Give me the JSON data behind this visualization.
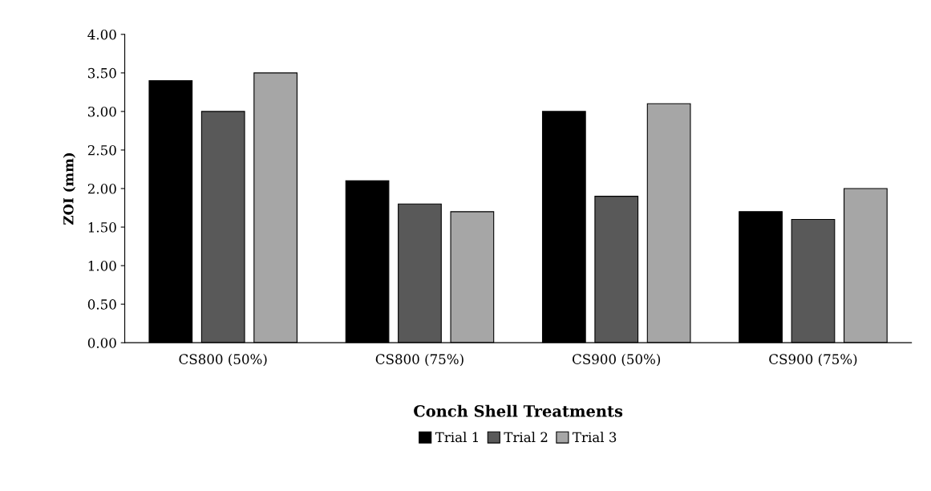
{
  "chart_data": {
    "type": "bar",
    "xlabel": "Conch Shell Treatments",
    "ylabel": "ZOI (mm)",
    "categories": [
      "CS800 (50%)",
      "CS800 (75%)",
      "CS900 (50%)",
      "CS900 (75%)"
    ],
    "series": [
      {
        "name": "Trial 1",
        "color": "#000000",
        "values": [
          3.4,
          2.1,
          3.0,
          1.7
        ]
      },
      {
        "name": "Trial 2",
        "color": "#595959",
        "values": [
          3.0,
          1.8,
          1.9,
          1.6
        ]
      },
      {
        "name": "Trial 3",
        "color": "#a6a6a6",
        "values": [
          3.5,
          1.7,
          3.1,
          2.0
        ]
      }
    ],
    "ylim": [
      0,
      4
    ],
    "yticks": [
      {
        "value": 0,
        "label": "0.00"
      },
      {
        "value": 0.5,
        "label": "0.50"
      },
      {
        "value": 1,
        "label": "1.00"
      },
      {
        "value": 1.5,
        "label": "1.50"
      },
      {
        "value": 2,
        "label": "2.00"
      },
      {
        "value": 2.5,
        "label": "2.50"
      },
      {
        "value": 3,
        "label": "3.00"
      },
      {
        "value": 3.5,
        "label": "3.50"
      },
      {
        "value": 4,
        "label": "4.00"
      }
    ],
    "grid": false,
    "legend": "bottom"
  }
}
